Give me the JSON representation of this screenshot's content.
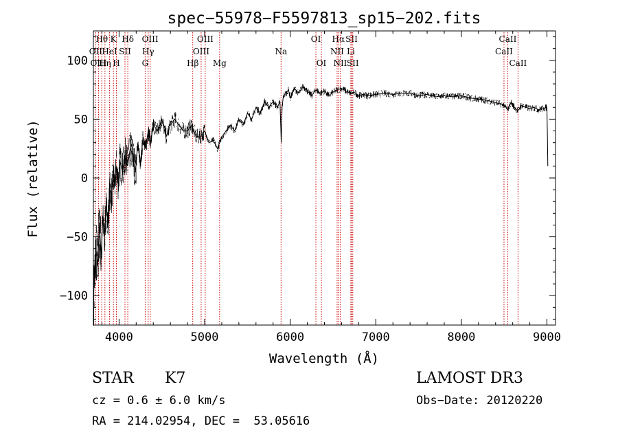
{
  "chart_data": {
    "type": "line",
    "title": "spec−55978−F5597813_sp15−202.fits",
    "xlabel": "Wavelength (Å)",
    "ylabel": "Flux (relative)",
    "xlim": [
      3700,
      9100
    ],
    "ylim": [
      -125,
      125
    ],
    "xticks": [
      4000,
      5000,
      6000,
      7000,
      8000,
      9000
    ],
    "yticks": [
      -100,
      -50,
      0,
      50,
      100
    ],
    "ytick_labels": [
      "−100",
      "−50",
      "0",
      "50",
      "100"
    ],
    "grid": false,
    "line_color": "#000000",
    "marker_color": "#cc0000",
    "series": [
      {
        "name": "flux",
        "x": [
          3710,
          3730,
          3750,
          3770,
          3790,
          3810,
          3830,
          3850,
          3870,
          3890,
          3910,
          3930,
          3950,
          3970,
          3990,
          4010,
          4040,
          4070,
          4100,
          4130,
          4160,
          4190,
          4220,
          4250,
          4280,
          4310,
          4340,
          4370,
          4400,
          4450,
          4500,
          4550,
          4600,
          4650,
          4700,
          4750,
          4800,
          4850,
          4900,
          4950,
          5000,
          5050,
          5100,
          5150,
          5200,
          5250,
          5300,
          5350,
          5400,
          5450,
          5500,
          5550,
          5600,
          5650,
          5700,
          5750,
          5800,
          5850,
          5880,
          5895,
          5905,
          5920,
          5950,
          5980,
          6000,
          6050,
          6100,
          6150,
          6200,
          6250,
          6300,
          6350,
          6400,
          6450,
          6500,
          6550,
          6600,
          6650,
          6700,
          6750,
          6800,
          6850,
          6900,
          7000,
          7100,
          7200,
          7300,
          7400,
          7500,
          7600,
          7700,
          7800,
          7900,
          8000,
          8100,
          8200,
          8300,
          8400,
          8500,
          8540,
          8580,
          8620,
          8660,
          8700,
          8750,
          8800,
          8850,
          8900,
          8950,
          9000,
          9005,
          9010
        ],
        "y": [
          -90,
          -60,
          -75,
          -40,
          -65,
          -35,
          -50,
          -20,
          -40,
          -10,
          -15,
          0,
          -5,
          10,
          -5,
          15,
          5,
          20,
          10,
          25,
          20,
          5,
          30,
          10,
          35,
          25,
          40,
          30,
          45,
          40,
          50,
          35,
          45,
          50,
          45,
          40,
          40,
          45,
          35,
          35,
          40,
          30,
          32,
          25,
          35,
          40,
          45,
          40,
          50,
          45,
          55,
          50,
          60,
          55,
          65,
          60,
          65,
          60,
          65,
          30,
          60,
          70,
          72,
          75,
          68,
          76,
          72,
          78,
          74,
          70,
          75,
          72,
          74,
          70,
          73,
          75,
          76,
          74,
          72,
          73,
          70,
          71,
          70,
          71,
          72,
          71,
          72,
          72,
          70,
          71,
          69,
          70,
          69,
          70,
          68,
          67,
          66,
          64,
          62,
          58,
          64,
          60,
          57,
          62,
          60,
          59,
          60,
          58,
          59,
          60,
          35,
          10
        ]
      }
    ],
    "line_markers": [
      {
        "label": "Hθ",
        "wl": 3798,
        "row": 1
      },
      {
        "label": "OII",
        "wl": 3727,
        "row": 2
      },
      {
        "label": "OIII",
        "wl": 3760,
        "row": 3
      },
      {
        "label": "Hη",
        "wl": 3835,
        "row": 3
      },
      {
        "label": "HeI",
        "wl": 3889,
        "row": 2
      },
      {
        "label": "K",
        "wl": 3934,
        "row": 1
      },
      {
        "label": "H",
        "wl": 3969,
        "row": 3
      },
      {
        "label": "SII",
        "wl": 4069,
        "row": 2
      },
      {
        "label": "Hδ",
        "wl": 4102,
        "row": 1
      },
      {
        "label": "OIII",
        "wl": 4363,
        "row": 1
      },
      {
        "label": "Hγ",
        "wl": 4340,
        "row": 2
      },
      {
        "label": "G",
        "wl": 4305,
        "row": 3
      },
      {
        "label": "Hβ",
        "wl": 4861,
        "row": 3
      },
      {
        "label": "OIII",
        "wl": 5007,
        "row": 1
      },
      {
        "label": "OIII",
        "wl": 4959,
        "row": 2
      },
      {
        "label": "Mg",
        "wl": 5175,
        "row": 3
      },
      {
        "label": "Na",
        "wl": 5893,
        "row": 2
      },
      {
        "label": "OI",
        "wl": 6300,
        "row": 1
      },
      {
        "label": "OI",
        "wl": 6364,
        "row": 3
      },
      {
        "label": "Hα",
        "wl": 6563,
        "row": 1
      },
      {
        "label": "SII",
        "wl": 6717,
        "row": 1
      },
      {
        "label": "NII",
        "wl": 6548,
        "row": 2
      },
      {
        "label": "Li",
        "wl": 6708,
        "row": 2
      },
      {
        "label": "NII",
        "wl": 6584,
        "row": 3
      },
      {
        "label": "SII",
        "wl": 6731,
        "row": 3
      },
      {
        "label": "CaII",
        "wl": 8542,
        "row": 1
      },
      {
        "label": "CaII",
        "wl": 8498,
        "row": 2
      },
      {
        "label": "CaII",
        "wl": 8662,
        "row": 3
      }
    ]
  },
  "info": {
    "class_label": "STAR",
    "subclass": "K7",
    "redshift": "cz = 0.6 ± 6.0 km/s",
    "coords": "RA = 214.02954, DEC =  53.05616",
    "survey": "LAMOST DR3",
    "obs_date": "Obs−Date: 20120220"
  }
}
